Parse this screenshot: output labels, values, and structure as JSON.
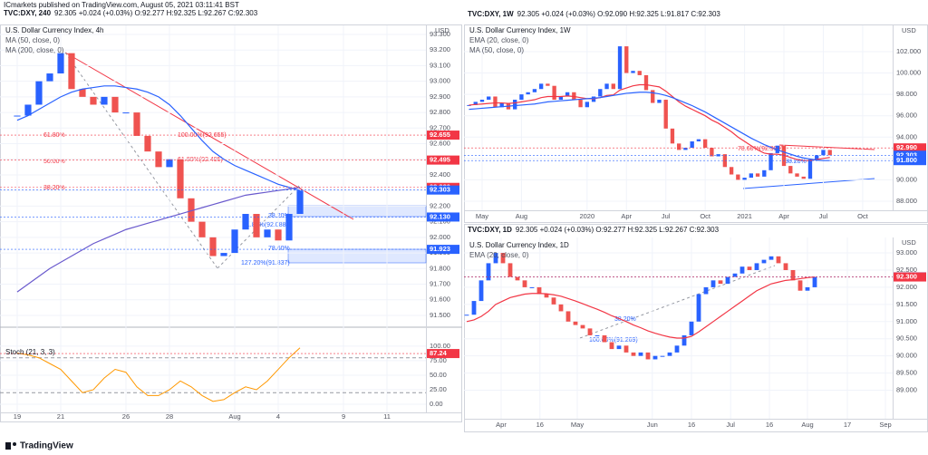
{
  "header": {
    "author": "ICmarkets published on TradingView.com, August 05, 2021 03:11:41 BST"
  },
  "footer": {
    "brand": "TradingView"
  },
  "chart_data": [
    {
      "type": "candlestick",
      "symbol": "TVC:DXY, 240",
      "quote": "92.305 +0.024 (+0.03%) O:92.277 H:92.325 L:92.267 C:92.303",
      "title": "U.S. Dollar Currency Index, 4h",
      "currency": "USD",
      "up_color": "#2962ff",
      "down_color": "#ef5350",
      "values": [
        92.78,
        92.85,
        93.0,
        93.05,
        93.18,
        92.95,
        92.9,
        92.85,
        92.9,
        92.8,
        92.8,
        92.65,
        92.55,
        92.45,
        92.5,
        92.25,
        92.1,
        92.0,
        91.88,
        91.9,
        92.05,
        92.15,
        92.0,
        92.05,
        91.98,
        92.15,
        92.3
      ],
      "series": [
        {
          "name": "MA (50, close, 0)",
          "color": "#2962ff",
          "values": [
            92.75,
            92.78,
            92.82,
            92.86,
            92.9,
            92.93,
            92.95,
            92.96,
            92.97,
            92.97,
            92.96,
            92.95,
            92.93,
            92.9,
            92.85,
            92.78,
            92.7,
            92.62,
            92.55,
            92.5,
            92.46,
            92.43,
            92.4,
            92.37,
            92.34,
            92.32,
            92.3
          ]
        },
        {
          "name": "MA (200, close, 0)",
          "color": "#6a5acd",
          "values": [
            91.65,
            91.7,
            91.75,
            91.8,
            91.84,
            91.88,
            91.92,
            91.96,
            91.99,
            92.02,
            92.05,
            92.07,
            92.09,
            92.11,
            92.13,
            92.15,
            92.17,
            92.19,
            92.21,
            92.23,
            92.25,
            92.27,
            92.28,
            92.29,
            92.3,
            92.31,
            92.32
          ]
        }
      ],
      "xlim": [
        -1.58,
        37.58
      ],
      "xticks": [
        {
          "value": 0,
          "label": "19"
        },
        {
          "value": 4,
          "label": "21"
        },
        {
          "value": 10,
          "label": "26"
        },
        {
          "value": 14,
          "label": "28"
        },
        {
          "value": 20,
          "label": "Aug"
        },
        {
          "value": 24,
          "label": "4"
        },
        {
          "value": 30,
          "label": "9"
        },
        {
          "value": 34,
          "label": "11"
        }
      ],
      "ylim": [
        91.43,
        93.358
      ],
      "yticks": [
        {
          "value": 91.5,
          "label": "91.500"
        },
        {
          "value": 91.6,
          "label": "91.600"
        },
        {
          "value": 91.7,
          "label": "91.700"
        },
        {
          "value": 91.8,
          "label": "91.800"
        },
        {
          "value": 91.9,
          "label": "91.900"
        },
        {
          "value": 92.0,
          "label": "92.000"
        },
        {
          "value": 92.1,
          "label": "92.100"
        },
        {
          "value": 92.2,
          "label": "92.200"
        },
        {
          "value": 92.3,
          "label": "92.300"
        },
        {
          "value": 92.4,
          "label": "92.400"
        },
        {
          "value": 92.5,
          "label": "92.500"
        },
        {
          "value": 92.6,
          "label": "92.600"
        },
        {
          "value": 92.7,
          "label": "92.700"
        },
        {
          "value": 92.8,
          "label": "92.800"
        },
        {
          "value": 92.9,
          "label": "92.900"
        },
        {
          "value": 93.0,
          "label": "93.000"
        },
        {
          "value": 93.1,
          "label": "93.100"
        },
        {
          "value": 93.2,
          "label": "93.200"
        },
        {
          "value": 93.3,
          "label": "93.300"
        }
      ],
      "price_tags": [
        {
          "value": 92.655,
          "label": "92.655",
          "color": "#f23645"
        },
        {
          "value": 92.495,
          "label": "92.495",
          "color": "#f23645"
        },
        {
          "value": 92.32,
          "label": "92.320",
          "color": "#f23645"
        },
        {
          "value": 92.303,
          "label": "92.303",
          "color": "#2962ff"
        },
        {
          "value": 92.13,
          "label": "92.130",
          "color": "#2962ff"
        },
        {
          "value": 91.923,
          "label": "91.923",
          "color": "#2962ff"
        }
      ],
      "annotations": [
        "61.80%",
        "50.00%",
        "38.20%",
        "100.00%(92.655)",
        "61.80%(92.495)",
        "38.20%",
        "61.80%(92.088)",
        "78.60%",
        "127.20%(91.837)"
      ]
    },
    {
      "type": "line",
      "title": "Stoch (21, 3, 3)",
      "color": "#ff9800",
      "values": [
        88,
        85,
        80,
        70,
        60,
        40,
        20,
        25,
        45,
        60,
        55,
        30,
        15,
        15,
        25,
        40,
        30,
        15,
        5,
        8,
        20,
        30,
        25,
        40,
        60,
        80,
        97
      ],
      "levels": [
        80,
        20
      ],
      "xlim": [
        -1.58,
        37.58
      ],
      "ylim": [
        -14,
        131
      ],
      "yticks": [
        {
          "value": 0,
          "label": "0.00"
        },
        {
          "value": 25,
          "label": "25.00"
        },
        {
          "value": 50,
          "label": "50.00"
        },
        {
          "value": 75,
          "label": "75.00"
        },
        {
          "value": 100,
          "label": "100.00"
        }
      ],
      "price_tags": [
        {
          "value": 87.24,
          "label": "87.24",
          "color": "#f23645"
        }
      ]
    },
    {
      "type": "candlestick",
      "symbol": "TVC:DXY, 1W",
      "quote": "92.305 +0.024 (+0.03%) O:92.090 H:92.325 L:91.817 C:92.303",
      "title": "U.S. Dollar Currency Index, 1W",
      "currency": "USD",
      "up_color": "#2962ff",
      "down_color": "#ef5350",
      "values": [
        97.0,
        97.3,
        97.5,
        97.8,
        96.8,
        97.2,
        96.6,
        97.5,
        98.0,
        98.2,
        98.5,
        99.0,
        98.8,
        97.5,
        97.8,
        98.2,
        97.5,
        96.8,
        97.3,
        97.8,
        98.5,
        99.0,
        98.5,
        102.5,
        100.0,
        100.2,
        99.8,
        98.4,
        97.2,
        97.5,
        94.8,
        93.4,
        92.8,
        93.0,
        93.6,
        93.8,
        93.0,
        92.2,
        92.4,
        91.2,
        90.5,
        90.0,
        90.2,
        90.6,
        90.3,
        90.9,
        92.5,
        93.2,
        91.3,
        90.6,
        90.3,
        90.1,
        91.9,
        92.3,
        92.8,
        92.3
      ],
      "series": [
        {
          "name": "EMA (20, close, 0)",
          "color": "#f23645",
          "values": [
            97.0,
            97.05,
            97.1,
            97.15,
            97.2,
            97.2,
            97.15,
            97.2,
            97.3,
            97.4,
            97.5,
            97.7,
            97.8,
            97.8,
            97.8,
            97.85,
            97.8,
            97.7,
            97.6,
            97.6,
            97.7,
            97.9,
            97.95,
            98.4,
            98.6,
            98.8,
            98.9,
            98.9,
            98.8,
            98.7,
            98.3,
            97.8,
            97.3,
            96.9,
            96.6,
            96.3,
            96.0,
            95.6,
            95.3,
            94.9,
            94.5,
            94.0,
            93.6,
            93.2,
            92.8,
            92.5,
            92.4,
            92.4,
            92.3,
            92.1,
            91.9,
            91.8,
            91.8,
            91.9,
            92.0,
            92.1
          ]
        },
        {
          "name": "MA (50, close, 0)",
          "color": "#2962ff",
          "values": [
            96.6,
            96.65,
            96.7,
            96.75,
            96.8,
            96.85,
            96.9,
            96.95,
            97.0,
            97.05,
            97.1,
            97.2,
            97.3,
            97.35,
            97.4,
            97.45,
            97.5,
            97.55,
            97.6,
            97.65,
            97.7,
            97.8,
            97.9,
            98.0,
            98.1,
            98.15,
            98.2,
            98.2,
            98.15,
            98.05,
            97.9,
            97.7,
            97.45,
            97.2,
            96.95,
            96.65,
            96.35,
            96.0,
            95.65,
            95.3,
            94.95,
            94.6,
            94.25,
            93.9,
            93.6,
            93.3,
            93.05,
            92.8,
            92.6,
            92.4,
            92.2,
            92.05,
            91.95,
            91.85,
            91.8,
            91.8
          ]
        }
      ],
      "xlim": [
        -0.76,
        64.57
      ],
      "xticks": [
        {
          "value": 2,
          "label": "May"
        },
        {
          "value": 8,
          "label": "Aug"
        },
        {
          "value": 18,
          "label": "2020"
        },
        {
          "value": 24,
          "label": "Apr"
        },
        {
          "value": 30,
          "label": "Jul"
        },
        {
          "value": 36,
          "label": "Oct"
        },
        {
          "value": 42,
          "label": "2021"
        },
        {
          "value": 48,
          "label": "Apr"
        },
        {
          "value": 54,
          "label": "Jul"
        },
        {
          "value": 60,
          "label": "Oct"
        }
      ],
      "ylim": [
        87.15,
        104.46
      ],
      "yticks": [
        {
          "value": 88,
          "label": "88.000"
        },
        {
          "value": 90,
          "label": "90.000"
        },
        {
          "value": 92,
          "label": "92.000"
        },
        {
          "value": 94,
          "label": "94.000"
        },
        {
          "value": 96,
          "label": "96.000"
        },
        {
          "value": 98,
          "label": "98.000"
        },
        {
          "value": 100,
          "label": "100.000"
        },
        {
          "value": 102,
          "label": "102.000"
        }
      ],
      "price_tags": [
        {
          "value": 92.99,
          "label": "92.990",
          "color": "#f23645"
        },
        {
          "value": 92.303,
          "label": "92.303",
          "color": "#2962ff"
        },
        {
          "value": 91.8,
          "label": "91.800",
          "color": "#2962ff"
        }
      ],
      "annotations": [
        "78.60%(92.999)",
        "38.20%"
      ]
    },
    {
      "type": "candlestick",
      "symbol": "TVC:DXY, 1D",
      "quote": "92.305 +0.024 (+0.03%) O:92.277 H:92.325 L:92.267 C:92.303",
      "title": "U.S. Dollar Currency Index, 1D",
      "currency": "USD",
      "up_color": "#2962ff",
      "down_color": "#ef5350",
      "values": [
        91.2,
        91.6,
        92.2,
        92.7,
        93.0,
        92.7,
        92.3,
        92.2,
        92.0,
        92.0,
        91.8,
        91.7,
        91.5,
        91.3,
        91.0,
        90.9,
        90.8,
        90.6,
        90.6,
        90.4,
        90.2,
        90.3,
        90.1,
        90.0,
        90.1,
        89.9,
        90.0,
        90.0,
        90.1,
        90.3,
        90.6,
        91.0,
        91.8,
        92.0,
        92.2,
        92.1,
        92.3,
        92.4,
        92.6,
        92.5,
        92.7,
        92.8,
        92.9,
        92.7,
        92.5,
        92.2,
        91.9,
        92.0,
        92.3
      ],
      "series": [
        {
          "name": "EMA (20, close, 0)",
          "color": "#f23645",
          "values": [
            91.0,
            91.05,
            91.15,
            91.3,
            91.5,
            91.6,
            91.7,
            91.75,
            91.8,
            91.82,
            91.82,
            91.81,
            91.78,
            91.74,
            91.67,
            91.6,
            91.52,
            91.44,
            91.36,
            91.27,
            91.17,
            91.09,
            91.0,
            90.9,
            90.82,
            90.73,
            90.66,
            90.6,
            90.55,
            90.52,
            90.52,
            90.57,
            90.7,
            90.85,
            91.0,
            91.15,
            91.3,
            91.45,
            91.6,
            91.75,
            91.9,
            92.0,
            92.1,
            92.15,
            92.2,
            92.22,
            92.25,
            92.28,
            92.3
          ]
        }
      ],
      "xlim": [
        -0.375,
        58.75
      ],
      "xticks": [
        {
          "value": 4.75,
          "label": "Apr"
        },
        {
          "value": 10.1,
          "label": "16"
        },
        {
          "value": 15.25,
          "label": "May"
        },
        {
          "value": 25.6,
          "label": "Jun"
        },
        {
          "value": 31,
          "label": "16"
        },
        {
          "value": 36.4,
          "label": "Jul"
        },
        {
          "value": 41.75,
          "label": "16"
        },
        {
          "value": 47,
          "label": "Aug"
        },
        {
          "value": 52.5,
          "label": "17"
        },
        {
          "value": 57.75,
          "label": "Sep"
        }
      ],
      "ylim": [
        88.17,
        93.45
      ],
      "yticks": [
        {
          "value": 89,
          "label": "89.000"
        },
        {
          "value": 89.5,
          "label": "89.500"
        },
        {
          "value": 90,
          "label": "90.000"
        },
        {
          "value": 90.5,
          "label": "90.500"
        },
        {
          "value": 91,
          "label": "91.000"
        },
        {
          "value": 91.5,
          "label": "91.500"
        },
        {
          "value": 92,
          "label": "92.000"
        },
        {
          "value": 92.5,
          "label": "92.500"
        },
        {
          "value": 93,
          "label": "93.000"
        }
      ],
      "price_tags": [
        {
          "value": 92.303,
          "label": "92.303",
          "color": "#2962ff"
        },
        {
          "value": 92.3,
          "label": "92.300",
          "color": "#f23645"
        }
      ],
      "annotations": [
        "38.20%",
        "100.00%(91.269)"
      ]
    }
  ]
}
